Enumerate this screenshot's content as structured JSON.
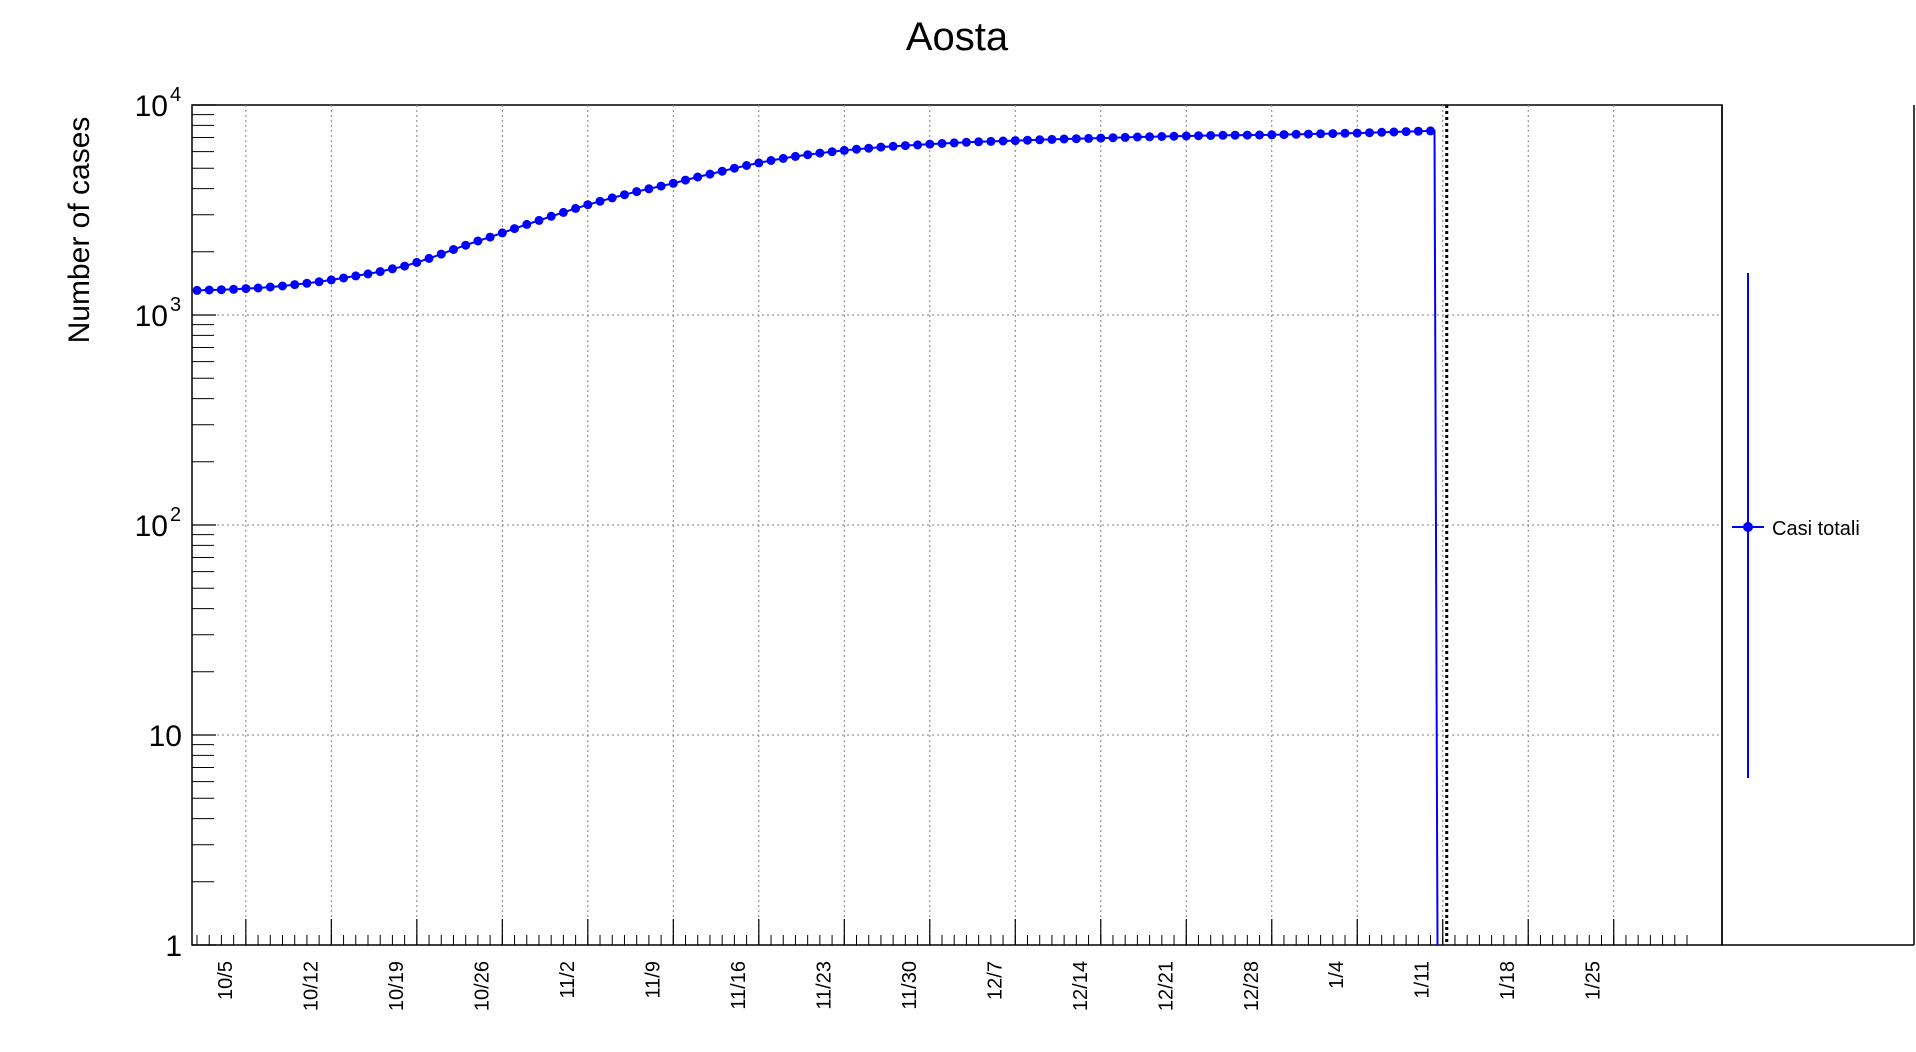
{
  "chart_data": {
    "type": "line",
    "title": "Aosta",
    "xlabel": "",
    "ylabel": "Number of cases",
    "yscale": "log",
    "ylim": [
      1,
      10000
    ],
    "xlim": [
      "2020-10-01",
      "2021-01-31"
    ],
    "grid": true,
    "legend_position": "right",
    "colors": {
      "series": "#0000ff",
      "axis": "#000000",
      "grid": "#808080",
      "marker_line": "#000000"
    },
    "x_ticks": [
      {
        "date": "2020-10-05",
        "label": "10/5"
      },
      {
        "date": "2020-10-12",
        "label": "10/12"
      },
      {
        "date": "2020-10-19",
        "label": "10/19"
      },
      {
        "date": "2020-10-26",
        "label": "10/26"
      },
      {
        "date": "2020-11-02",
        "label": "11/2"
      },
      {
        "date": "2020-11-09",
        "label": "11/9"
      },
      {
        "date": "2020-11-16",
        "label": "11/16"
      },
      {
        "date": "2020-11-23",
        "label": "11/23"
      },
      {
        "date": "2020-11-30",
        "label": "11/30"
      },
      {
        "date": "2020-12-07",
        "label": "12/7"
      },
      {
        "date": "2020-12-14",
        "label": "12/14"
      },
      {
        "date": "2020-12-21",
        "label": "12/21"
      },
      {
        "date": "2020-12-28",
        "label": "12/28"
      },
      {
        "date": "2021-01-04",
        "label": "1/4"
      },
      {
        "date": "2021-01-11",
        "label": "1/11"
      },
      {
        "date": "2021-01-18",
        "label": "1/18"
      },
      {
        "date": "2021-01-25",
        "label": "1/25"
      }
    ],
    "y_ticks": [
      {
        "value": 1,
        "base": "1",
        "exp": ""
      },
      {
        "value": 10,
        "base": "10",
        "exp": ""
      },
      {
        "value": 100,
        "base": "10",
        "exp": "2"
      },
      {
        "value": 1000,
        "base": "10",
        "exp": "3"
      },
      {
        "value": 10000,
        "base": "10",
        "exp": "4"
      }
    ],
    "vertical_marker_date": "2021-01-11",
    "series": [
      {
        "name": "Casi totali",
        "color": "#0000ff",
        "points": [
          [
            "2020-10-01",
            1310
          ],
          [
            "2020-10-02",
            1315
          ],
          [
            "2020-10-03",
            1320
          ],
          [
            "2020-10-04",
            1325
          ],
          [
            "2020-10-05",
            1335
          ],
          [
            "2020-10-06",
            1345
          ],
          [
            "2020-10-07",
            1360
          ],
          [
            "2020-10-08",
            1375
          ],
          [
            "2020-10-09",
            1395
          ],
          [
            "2020-10-10",
            1415
          ],
          [
            "2020-10-11",
            1440
          ],
          [
            "2020-10-12",
            1470
          ],
          [
            "2020-10-13",
            1500
          ],
          [
            "2020-10-14",
            1535
          ],
          [
            "2020-10-15",
            1570
          ],
          [
            "2020-10-16",
            1610
          ],
          [
            "2020-10-17",
            1660
          ],
          [
            "2020-10-18",
            1710
          ],
          [
            "2020-10-19",
            1780
          ],
          [
            "2020-10-20",
            1860
          ],
          [
            "2020-10-21",
            1950
          ],
          [
            "2020-10-22",
            2050
          ],
          [
            "2020-10-23",
            2150
          ],
          [
            "2020-10-24",
            2250
          ],
          [
            "2020-10-25",
            2350
          ],
          [
            "2020-10-26",
            2460
          ],
          [
            "2020-10-27",
            2580
          ],
          [
            "2020-10-28",
            2700
          ],
          [
            "2020-10-29",
            2820
          ],
          [
            "2020-10-30",
            2950
          ],
          [
            "2020-10-31",
            3080
          ],
          [
            "2020-11-01",
            3220
          ],
          [
            "2020-11-02",
            3350
          ],
          [
            "2020-11-03",
            3480
          ],
          [
            "2020-11-04",
            3610
          ],
          [
            "2020-11-05",
            3740
          ],
          [
            "2020-11-06",
            3870
          ],
          [
            "2020-11-07",
            3990
          ],
          [
            "2020-11-08",
            4110
          ],
          [
            "2020-11-09",
            4240
          ],
          [
            "2020-11-10",
            4390
          ],
          [
            "2020-11-11",
            4540
          ],
          [
            "2020-11-12",
            4690
          ],
          [
            "2020-11-13",
            4840
          ],
          [
            "2020-11-14",
            5000
          ],
          [
            "2020-11-15",
            5150
          ],
          [
            "2020-11-16",
            5300
          ],
          [
            "2020-11-17",
            5440
          ],
          [
            "2020-11-18",
            5570
          ],
          [
            "2020-11-19",
            5690
          ],
          [
            "2020-11-20",
            5800
          ],
          [
            "2020-11-21",
            5900
          ],
          [
            "2020-11-22",
            5990
          ],
          [
            "2020-11-23",
            6080
          ],
          [
            "2020-11-24",
            6160
          ],
          [
            "2020-11-25",
            6230
          ],
          [
            "2020-11-26",
            6300
          ],
          [
            "2020-11-27",
            6360
          ],
          [
            "2020-11-28",
            6410
          ],
          [
            "2020-11-29",
            6460
          ],
          [
            "2020-11-30",
            6510
          ],
          [
            "2020-12-01",
            6560
          ],
          [
            "2020-12-02",
            6600
          ],
          [
            "2020-12-03",
            6640
          ],
          [
            "2020-12-04",
            6680
          ],
          [
            "2020-12-05",
            6710
          ],
          [
            "2020-12-06",
            6740
          ],
          [
            "2020-12-07",
            6770
          ],
          [
            "2020-12-08",
            6800
          ],
          [
            "2020-12-09",
            6830
          ],
          [
            "2020-12-10",
            6860
          ],
          [
            "2020-12-11",
            6890
          ],
          [
            "2020-12-12",
            6910
          ],
          [
            "2020-12-13",
            6930
          ],
          [
            "2020-12-14",
            6960
          ],
          [
            "2020-12-15",
            6990
          ],
          [
            "2020-12-16",
            7010
          ],
          [
            "2020-12-17",
            7040
          ],
          [
            "2020-12-18",
            7060
          ],
          [
            "2020-12-19",
            7080
          ],
          [
            "2020-12-20",
            7100
          ],
          [
            "2020-12-21",
            7120
          ],
          [
            "2020-12-22",
            7140
          ],
          [
            "2020-12-23",
            7160
          ],
          [
            "2020-12-24",
            7170
          ],
          [
            "2020-12-25",
            7180
          ],
          [
            "2020-12-26",
            7190
          ],
          [
            "2020-12-27",
            7200
          ],
          [
            "2020-12-28",
            7215
          ],
          [
            "2020-12-29",
            7230
          ],
          [
            "2020-12-30",
            7250
          ],
          [
            "2020-12-31",
            7270
          ],
          [
            "2021-01-01",
            7290
          ],
          [
            "2021-01-02",
            7310
          ],
          [
            "2021-01-03",
            7330
          ],
          [
            "2021-01-04",
            7350
          ],
          [
            "2021-01-05",
            7380
          ],
          [
            "2021-01-06",
            7410
          ],
          [
            "2021-01-07",
            7440
          ],
          [
            "2021-01-08",
            7470
          ],
          [
            "2021-01-09",
            7500
          ],
          [
            "2021-01-10",
            7530
          ]
        ]
      }
    ]
  }
}
